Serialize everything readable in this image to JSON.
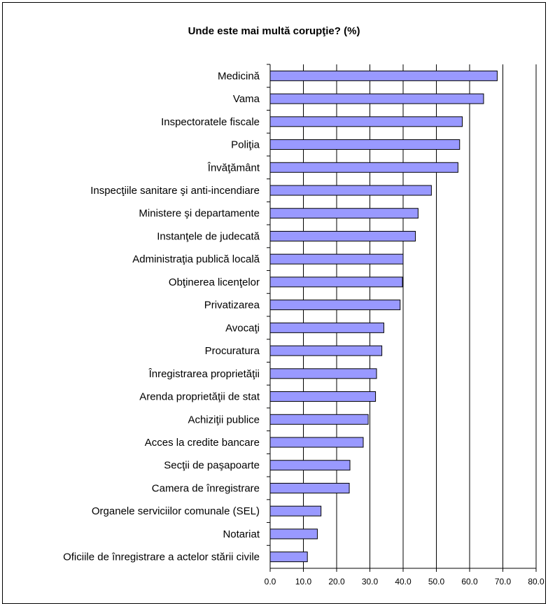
{
  "chart_data": {
    "type": "bar",
    "orientation": "horizontal",
    "title": "Unde este mai multă corupţie? (%)",
    "categories": [
      "Medicină",
      "Vama",
      "Inspectoratele fiscale",
      "Poliţia",
      "Învăţământ",
      "Inspecţiile sanitare şi anti-incendiare",
      "Ministere şi departamente",
      "Instanţele de judecată",
      "Administraţia publică locală",
      "Obţinerea licenţelor",
      "Privatizarea",
      "Avocaţi",
      "Procuratura",
      "Înregistrarea proprietăţii",
      "Arenda proprietăţii de stat",
      "Achiziţii publice",
      "Acces la credite bancare",
      "Secţii de paşapoarte",
      "Camera de înregistrare",
      "Organele serviciilor comunale (SEL)",
      "Notariat",
      "Oficiile de înregistrare a actelor stării civile"
    ],
    "values": [
      68.3,
      64.2,
      57.8,
      57.0,
      56.5,
      48.5,
      44.5,
      43.7,
      40.0,
      39.8,
      39.1,
      34.2,
      33.6,
      32.0,
      31.7,
      29.5,
      28.0,
      24.0,
      23.8,
      15.3,
      14.2,
      11.2
    ],
    "xlim": [
      0,
      80
    ],
    "xticks": [
      "0.0",
      "10.0",
      "20.0",
      "30.0",
      "40.0",
      "50.0",
      "60.0",
      "70.0",
      "80.0"
    ],
    "grid": true,
    "bar_color": "#9999ff",
    "bar_edge_color": "#000000"
  }
}
